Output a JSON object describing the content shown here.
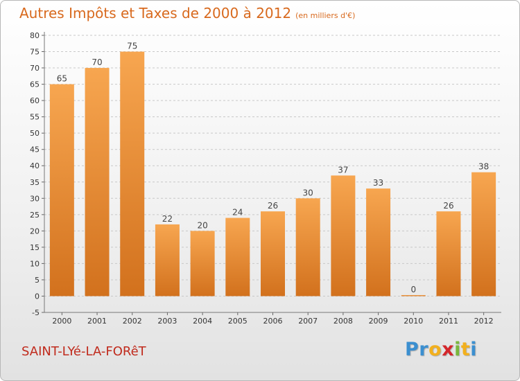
{
  "header": {
    "title": "Autres Impôts et Taxes de 2000 à 2012",
    "subtitle": "(en milliers d'€)"
  },
  "footer": {
    "commune": "SAINT-LYé-LA-FORêT",
    "logo_letters": [
      {
        "char": "P",
        "color": "#3b8fd0"
      },
      {
        "char": "r",
        "color": "#3b8fd0"
      },
      {
        "char": "o",
        "color": "#f2b01e"
      },
      {
        "char": "x",
        "color": "#d4262b"
      },
      {
        "char": "i",
        "color": "#7ab73c"
      },
      {
        "char": "t",
        "color": "#f2b01e"
      },
      {
        "char": "i",
        "color": "#3b8fd0"
      }
    ]
  },
  "colors": {
    "title": "#d8691d",
    "bar_light": "#f7a650",
    "bar_dark": "#d2711d",
    "commune": "#c02a1c"
  },
  "chart_data": {
    "type": "bar",
    "title": "Autres Impôts et Taxes de 2000 à 2012",
    "subtitle": "(en milliers d'€)",
    "categories": [
      "2000",
      "2001",
      "2002",
      "2003",
      "2004",
      "2005",
      "2006",
      "2007",
      "2008",
      "2009",
      "2010",
      "2011",
      "2012"
    ],
    "values": [
      65,
      70,
      75,
      22,
      20,
      24,
      26,
      30,
      37,
      33,
      0,
      26,
      38
    ],
    "ylim": [
      -5,
      80
    ],
    "yticks": [
      -5,
      0,
      5,
      10,
      15,
      20,
      25,
      30,
      35,
      40,
      45,
      50,
      55,
      60,
      65,
      70,
      75,
      80
    ],
    "grid": "horizontal dashed",
    "xlabel": "",
    "ylabel": ""
  }
}
